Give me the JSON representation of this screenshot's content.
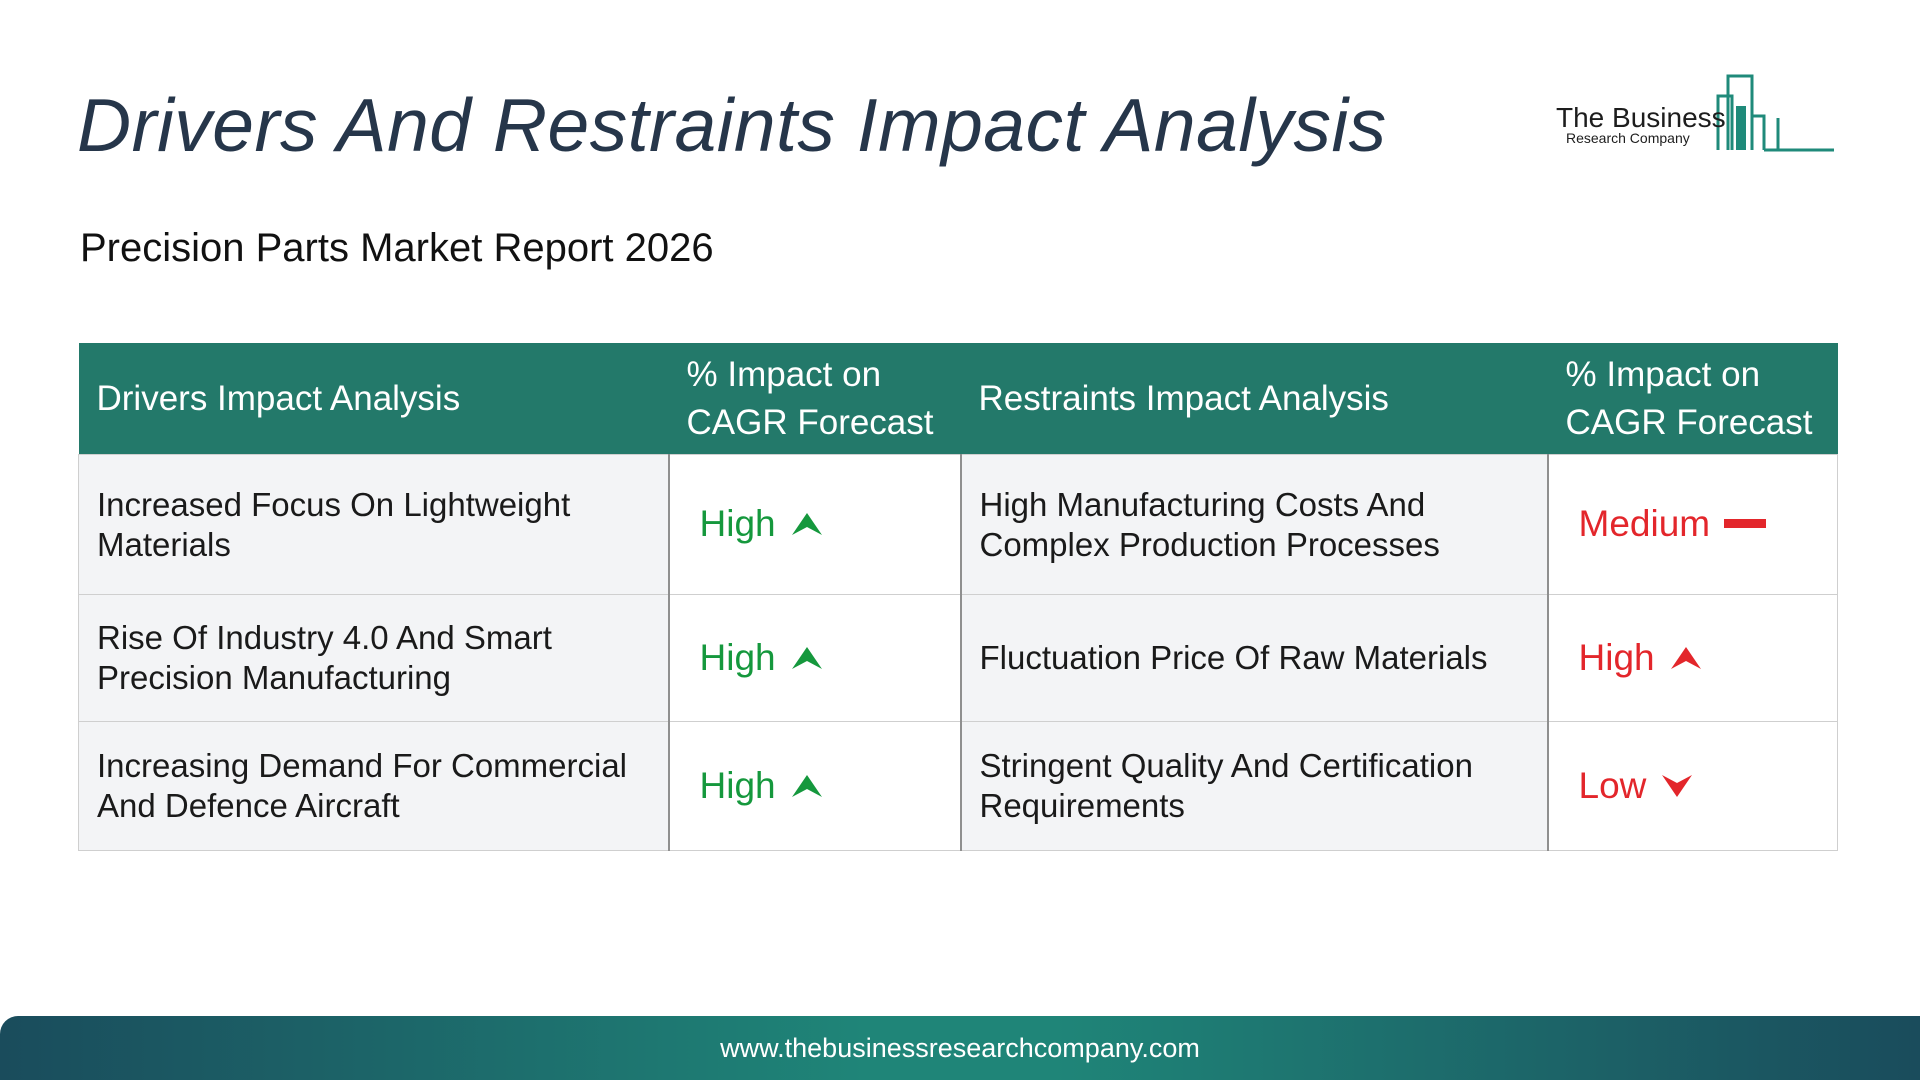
{
  "header": {
    "title": "Drivers And Restraints Impact Analysis",
    "subtitle": "Precision Parts Market Report 2026"
  },
  "logo": {
    "line1": "The Business",
    "line2": "Research Company",
    "accent_color": "#1f8a7a"
  },
  "table": {
    "columns": [
      "Drivers Impact Analysis",
      "% Impact on CAGR Forecast",
      "Restraints Impact Analysis",
      "% Impact on CAGR Forecast"
    ],
    "rows": [
      {
        "driver": "Increased Focus On Lightweight Materials",
        "driver_impact": "High",
        "driver_icon": "arrow-up-icon",
        "restraint": "High Manufacturing Costs And Complex Production Processes",
        "restraint_impact": "Medium",
        "restraint_icon": "dash-icon"
      },
      {
        "driver": "Rise Of Industry 4.0 And Smart Precision Manufacturing",
        "driver_impact": "High",
        "driver_icon": "arrow-up-icon",
        "restraint": "Fluctuation Price Of Raw Materials",
        "restraint_impact": "High",
        "restraint_icon": "arrow-up-icon"
      },
      {
        "driver": "Increasing Demand For Commercial And Defence Aircraft",
        "driver_impact": "High",
        "driver_icon": "arrow-up-icon",
        "restraint": "Stringent Quality And Certification Requirements",
        "restraint_impact": "Low",
        "restraint_icon": "arrow-down-icon"
      }
    ],
    "colors": {
      "header_bg": "#23796a",
      "driver_impact": "#15983d",
      "restraint_impact": "#e3262b"
    }
  },
  "footer": {
    "url": "www.thebusinessresearchcompany.com"
  }
}
